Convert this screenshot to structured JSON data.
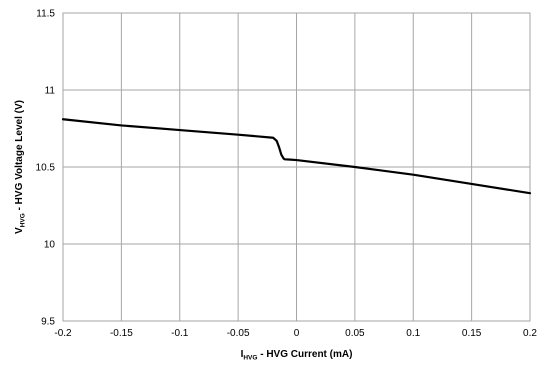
{
  "chart_data": {
    "type": "line",
    "title": "",
    "xlabel": {
      "main": "I",
      "sub": "HVG",
      "rest": " - HVG Current (mA)"
    },
    "ylabel": {
      "main": "V",
      "sub": "HVG",
      "rest": " - HVG Voltage Level (V)"
    },
    "xlim": [
      -0.2,
      0.2
    ],
    "ylim": [
      9.5,
      11.5
    ],
    "x_ticks": [
      -0.2,
      -0.15,
      -0.1,
      -0.05,
      0,
      0.05,
      0.1,
      0.15,
      0.2
    ],
    "x_tick_labels": [
      "-0.2",
      "-0.15",
      "-0.1",
      "-0.05",
      "0",
      "0.05",
      "0.1",
      "0.15",
      "0.2"
    ],
    "y_ticks": [
      9.5,
      10,
      10.5,
      11,
      11.5
    ],
    "y_tick_labels": [
      "9.5",
      "10",
      "10.5",
      "11",
      "11.5"
    ],
    "grid": true,
    "legend": "none",
    "line_color": "#000000",
    "grid_color": "#a6a6a6",
    "series": [
      {
        "x": [
          -0.2,
          -0.15,
          -0.1,
          -0.05,
          -0.02,
          -0.017,
          -0.015,
          -0.013,
          -0.011,
          -0.01,
          -0.005,
          0,
          0.05,
          0.1,
          0.15,
          0.2
        ],
        "y": [
          10.81,
          10.77,
          10.74,
          10.71,
          10.69,
          10.67,
          10.63,
          10.58,
          10.555,
          10.55,
          10.548,
          10.545,
          10.5,
          10.45,
          10.39,
          10.33
        ]
      }
    ]
  }
}
